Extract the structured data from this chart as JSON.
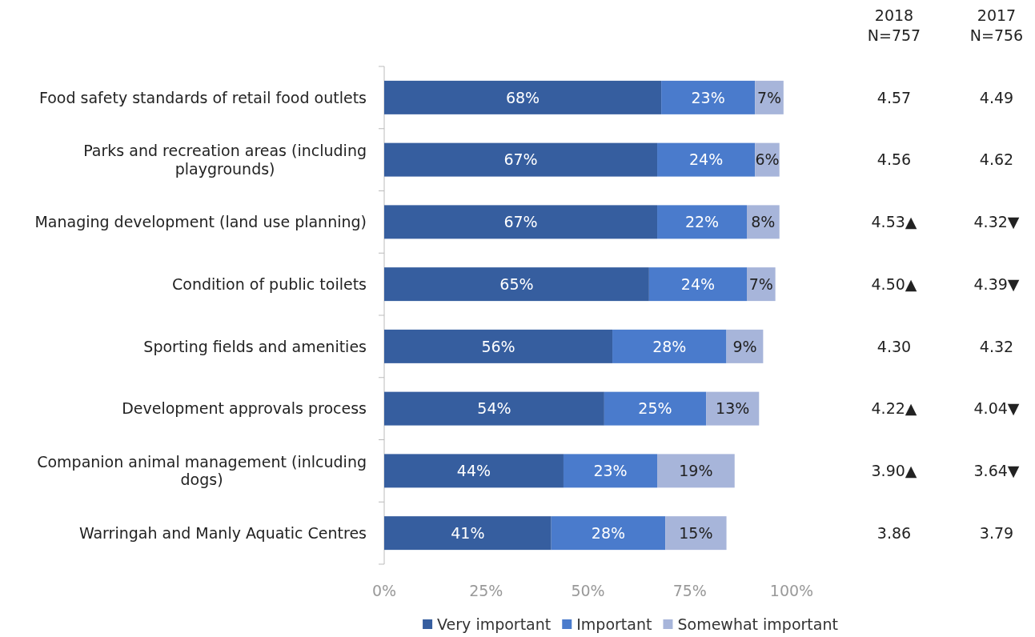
{
  "chart_data": {
    "type": "bar",
    "orientation": "horizontal",
    "stacked": true,
    "categories": [
      "Food safety standards of retail food outlets",
      "Parks and recreation areas (including playgrounds)",
      "Managing development (land use planning)",
      "Condition of public toilets",
      "Sporting fields and amenities",
      "Development approvals process",
      "Companion animal management (inlcuding dogs)",
      "Warringah and Manly Aquatic Centres"
    ],
    "series": [
      {
        "name": "Very important",
        "color": "#365e9f",
        "values": [
          68,
          67,
          67,
          65,
          56,
          54,
          44,
          41
        ],
        "value_labels": [
          "68%",
          "67%",
          "67%",
          "65%",
          "56%",
          "54%",
          "44%",
          "41%"
        ]
      },
      {
        "name": "Important",
        "color": "#4a7bcc",
        "values": [
          23,
          24,
          22,
          24,
          28,
          25,
          23,
          28
        ],
        "value_labels": [
          "23%",
          "24%",
          "22%",
          "24%",
          "28%",
          "25%",
          "23%",
          "28%"
        ]
      },
      {
        "name": "Somewhat important",
        "color": "#a7b5da",
        "values": [
          7,
          6,
          8,
          7,
          9,
          13,
          19,
          15
        ],
        "value_labels": [
          "7%",
          "6%",
          "8%",
          "7%",
          "9%",
          "13%",
          "19%",
          "15%"
        ]
      }
    ],
    "xlim": [
      0,
      100
    ],
    "xticks": [
      {
        "value": 0,
        "label": "0%"
      },
      {
        "value": 25,
        "label": "25%"
      },
      {
        "value": 50,
        "label": "50%"
      },
      {
        "value": 75,
        "label": "75%"
      },
      {
        "value": 100,
        "label": "100%"
      }
    ],
    "legend": "bottom",
    "annotations": [
      "2018\nN=757",
      "2017\nN=756",
      "4.57",
      "4.49",
      "4.56",
      "4.62",
      "4.53▲",
      "4.32▼",
      "4.50▲",
      "4.39▼",
      "4.30",
      "4.32",
      "4.22▲",
      "4.04▼",
      "3.90▲",
      "3.64▼",
      "3.86",
      "3.79"
    ]
  }
}
